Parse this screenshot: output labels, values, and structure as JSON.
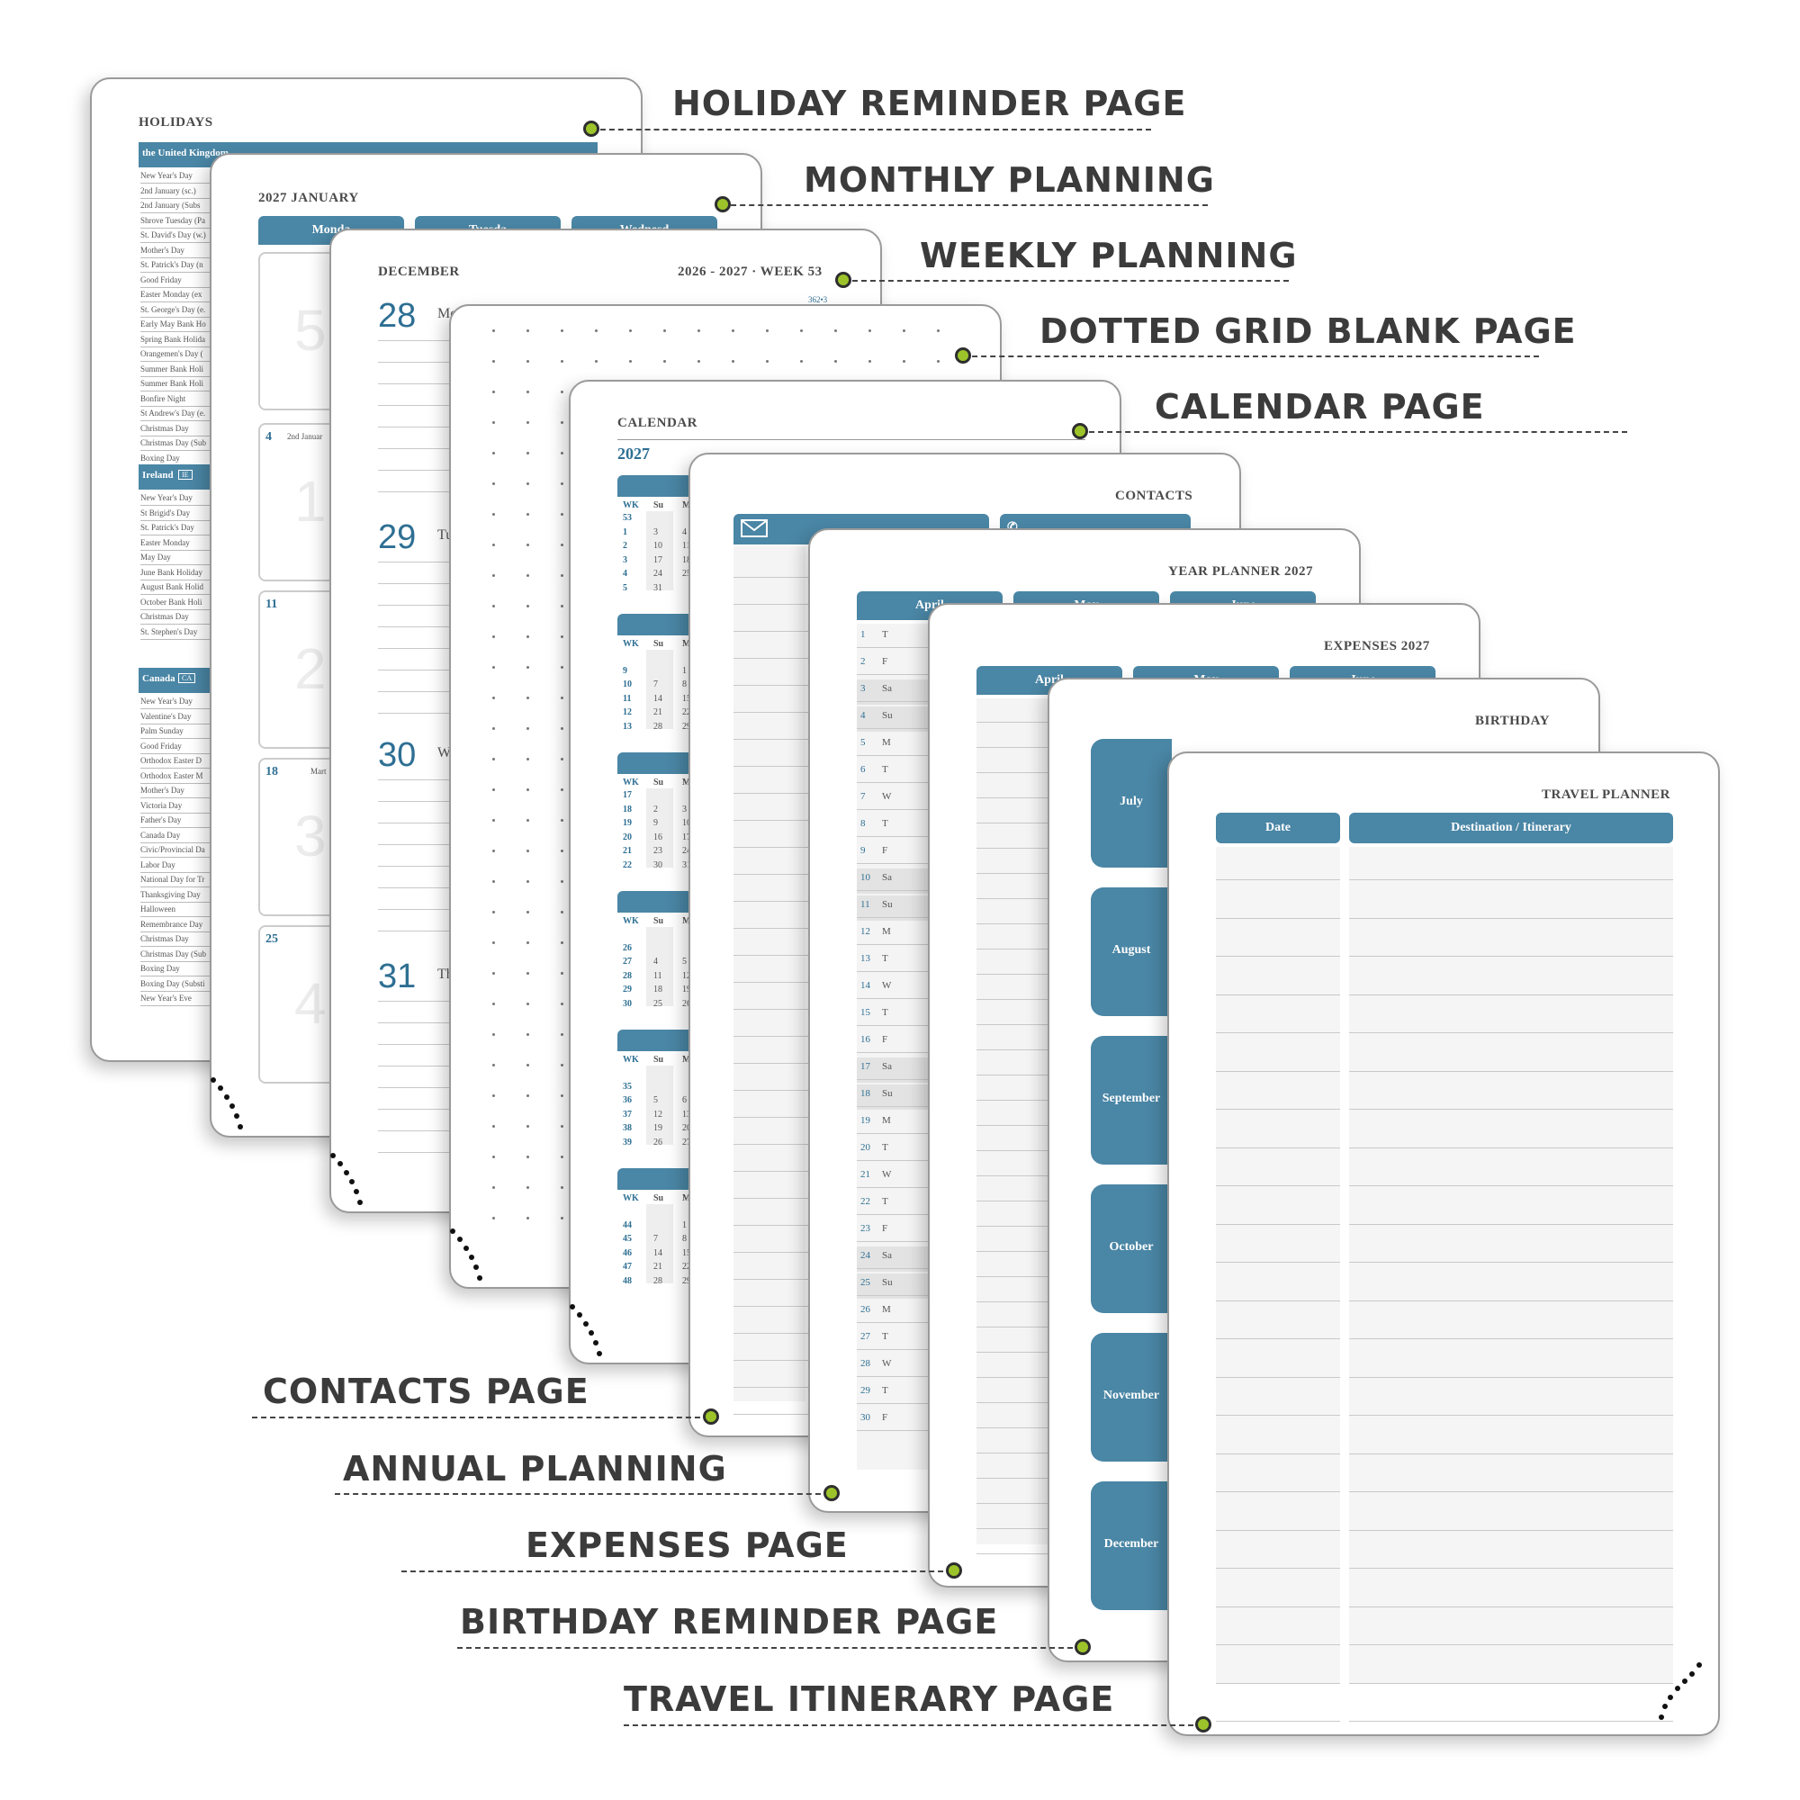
{
  "callouts": {
    "holiday": "HOLIDAY REMINDER PAGE",
    "monthly": "MONTHLY PLANNING",
    "weekly": "WEEKLY PLANNING",
    "dotted": "DOTTED GRID BLANK PAGE",
    "calendar": "CALENDAR PAGE",
    "contacts": "CONTACTS PAGE",
    "annual": "ANNUAL PLANNING",
    "expenses": "EXPENSES PAGE",
    "birthday": "BIRTHDAY REMINDER PAGE",
    "travel": "TRAVEL ITINERARY PAGE"
  },
  "holidays_page": {
    "title": "HOLIDAYS",
    "uk": {
      "header": "the United Kingdom",
      "items": [
        "New Year's Day",
        "2nd January (sc.)",
        "2nd January (Subs",
        "Shrove Tuesday (Pa",
        "St. David's Day (w.)",
        "Mother's Day",
        "St. Patrick's Day (n",
        "Good Friday",
        "Easter Monday (ex",
        "St. George's Day (e.",
        "Early May Bank Ho",
        "Spring Bank Holida",
        "Orangemen's Day (",
        "Summer Bank Holi",
        "Summer Bank Holi",
        "Bonfire Night",
        "St Andrew's Day (e.",
        "Christmas Day",
        "Christmas Day (Sub",
        "Boxing Day",
        "Boxing Day (Substi"
      ]
    },
    "ireland": {
      "header": "Ireland",
      "code": "IE",
      "items": [
        "New Year's Day",
        "St Brigid's Day",
        "St. Patrick's Day",
        "Easter Monday",
        "May Day",
        "June Bank Holiday",
        "August Bank Holid",
        "October Bank Holi",
        "Christmas Day",
        "St. Stephen's Day"
      ]
    },
    "canada": {
      "header": "Canada",
      "code": "CA",
      "items": [
        "New Year's Day",
        "Valentine's Day",
        "Palm Sunday",
        "Good Friday",
        "Orthodox Easter D",
        "Orthodox Easter M",
        "Mother's Day",
        "Victoria Day",
        "Father's Day",
        "Canada Day",
        "Civic/Provincial Da",
        "Labor Day",
        "National Day for Tr",
        "Thanksgiving Day",
        "Halloween",
        "Remembrance Day",
        "Christmas Day",
        "Christmas Day (Sub",
        "Boxing Day",
        "Boxing Day (Substi",
        "New Year's Eve"
      ]
    }
  },
  "monthly_page": {
    "title": "2027 JANUARY",
    "headers": [
      "Monda",
      "Tuesda",
      "Wednesd"
    ],
    "week_numbers": [
      "4",
      "11",
      "18",
      "25"
    ],
    "notes": [
      "2nd Januar",
      "Mart"
    ],
    "faded": [
      "5",
      "1",
      "2",
      "3",
      "4"
    ]
  },
  "weekly_page": {
    "month": "DECEMBER",
    "week": "2026 - 2027 · WEEK 53",
    "sub": "362•3",
    "days": [
      {
        "num": "28",
        "name": "Mo"
      },
      {
        "num": "29",
        "name": "Tu"
      },
      {
        "num": "30",
        "name": "W"
      },
      {
        "num": "31",
        "name": "Th"
      }
    ]
  },
  "calendar_page": {
    "title": "CALENDAR",
    "year": "2027",
    "col_wk": "WK",
    "col_su": "Su",
    "col_m": "M",
    "blocks": [
      {
        "rows": [
          [
            "53",
            "",
            ""
          ],
          [
            "1",
            "3",
            "4"
          ],
          [
            "2",
            "10",
            "11"
          ],
          [
            "3",
            "17",
            "18"
          ],
          [
            "4",
            "24",
            "25"
          ],
          [
            "5",
            "31",
            ""
          ]
        ]
      },
      {
        "rows": [
          [
            "",
            "",
            ""
          ],
          [
            "9",
            "",
            "1"
          ],
          [
            "10",
            "7",
            "8"
          ],
          [
            "11",
            "14",
            "15"
          ],
          [
            "12",
            "21",
            "22"
          ],
          [
            "13",
            "28",
            "29"
          ]
        ]
      },
      {
        "rows": [
          [
            "17",
            "",
            ""
          ],
          [
            "18",
            "2",
            "3"
          ],
          [
            "19",
            "9",
            "10"
          ],
          [
            "20",
            "16",
            "17"
          ],
          [
            "21",
            "23",
            "24"
          ],
          [
            "22",
            "30",
            "31"
          ]
        ]
      },
      {
        "rows": [
          [
            "",
            "",
            ""
          ],
          [
            "26",
            "",
            ""
          ],
          [
            "27",
            "4",
            "5"
          ],
          [
            "28",
            "11",
            "12"
          ],
          [
            "29",
            "18",
            "19"
          ],
          [
            "30",
            "25",
            "26"
          ]
        ]
      },
      {
        "rows": [
          [
            "",
            "",
            ""
          ],
          [
            "35",
            "",
            ""
          ],
          [
            "36",
            "5",
            "6"
          ],
          [
            "37",
            "12",
            "13"
          ],
          [
            "38",
            "19",
            "20"
          ],
          [
            "39",
            "26",
            "27"
          ]
        ]
      },
      {
        "rows": [
          [
            "",
            "",
            ""
          ],
          [
            "44",
            "",
            "1"
          ],
          [
            "45",
            "7",
            "8"
          ],
          [
            "46",
            "14",
            "15"
          ],
          [
            "47",
            "21",
            "22"
          ],
          [
            "48",
            "28",
            "29"
          ]
        ]
      }
    ]
  },
  "contacts_page": {
    "title": "CONTACTS",
    "envelope_icon": "envelope-icon",
    "phone_icon": "phone-icon"
  },
  "year_planner_page": {
    "title": "YEAR PLANNER 2027",
    "headers": [
      "April",
      "May",
      "June"
    ],
    "days": [
      [
        "1",
        "T"
      ],
      [
        "2",
        "F"
      ],
      [
        "3",
        "Sa"
      ],
      [
        "4",
        "Su"
      ],
      [
        "5",
        "M"
      ],
      [
        "6",
        "T"
      ],
      [
        "7",
        "W"
      ],
      [
        "8",
        "T"
      ],
      [
        "9",
        "F"
      ],
      [
        "10",
        "Sa"
      ],
      [
        "11",
        "Su"
      ],
      [
        "12",
        "M"
      ],
      [
        "13",
        "T"
      ],
      [
        "14",
        "W"
      ],
      [
        "15",
        "T"
      ],
      [
        "16",
        "F"
      ],
      [
        "17",
        "Sa"
      ],
      [
        "18",
        "Su"
      ],
      [
        "19",
        "M"
      ],
      [
        "20",
        "T"
      ],
      [
        "21",
        "W"
      ],
      [
        "22",
        "T"
      ],
      [
        "23",
        "F"
      ],
      [
        "24",
        "Sa"
      ],
      [
        "25",
        "Su"
      ],
      [
        "26",
        "M"
      ],
      [
        "27",
        "T"
      ],
      [
        "28",
        "W"
      ],
      [
        "29",
        "T"
      ],
      [
        "30",
        "F"
      ]
    ]
  },
  "expenses_page": {
    "title": "EXPENSES 2027",
    "headers": [
      "April",
      "May",
      "June"
    ]
  },
  "birthday_page": {
    "title": "BIRTHDAY",
    "months": [
      "July",
      "August",
      "September",
      "October",
      "November",
      "December"
    ]
  },
  "travel_page": {
    "title": "TRAVEL PLANNER",
    "col_date": "Date",
    "col_dest": "Destination / Itinerary"
  },
  "colors": {
    "accent": "#4a86a5",
    "marker": "#9cc42a",
    "text": "#3b3b3b"
  }
}
